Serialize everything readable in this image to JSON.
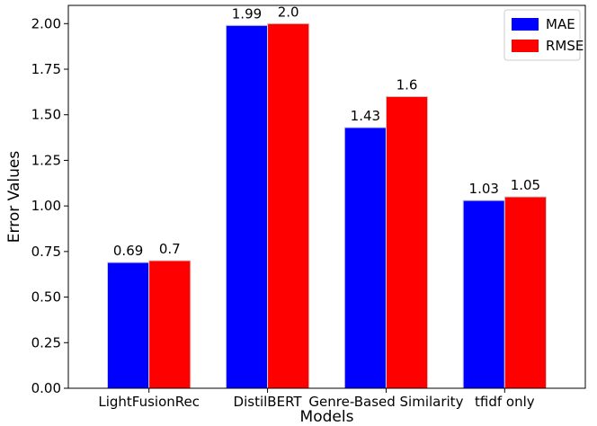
{
  "chart_data": {
    "type": "bar",
    "title": "",
    "xlabel": "Models",
    "ylabel": "Error Values",
    "categories": [
      "LightFusionRec",
      "DistilBERT",
      "Genre-Based Similarity",
      "tfidf only"
    ],
    "series": [
      {
        "name": "MAE",
        "color": "#0000ff",
        "values": [
          0.69,
          1.99,
          1.43,
          1.03
        ],
        "labels": [
          "0.69",
          "1.99",
          "1.43",
          "1.03"
        ]
      },
      {
        "name": "RMSE",
        "color": "#ff0000",
        "values": [
          0.7,
          2.0,
          1.6,
          1.05
        ],
        "labels": [
          "0.7",
          "2.0",
          "1.6",
          "1.05"
        ]
      }
    ],
    "ylim": [
      0,
      2.1
    ],
    "yticks": [
      0.0,
      0.25,
      0.5,
      0.75,
      1.0,
      1.25,
      1.5,
      1.75,
      2.0
    ],
    "ytick_labels": [
      "0.00",
      "0.25",
      "0.50",
      "0.75",
      "1.00",
      "1.25",
      "1.50",
      "1.75",
      "2.00"
    ],
    "grid": false,
    "legend_position": "top-right",
    "bar_edge_color": "#d0d0d0"
  }
}
